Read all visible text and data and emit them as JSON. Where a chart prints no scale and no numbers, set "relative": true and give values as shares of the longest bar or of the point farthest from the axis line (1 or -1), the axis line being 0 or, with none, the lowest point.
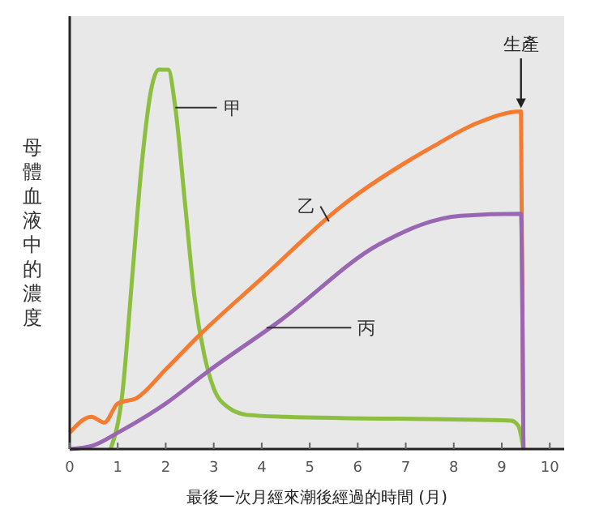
{
  "chart_data": {
    "type": "line",
    "relative": true,
    "xlabel": "最後一次月經來潮後經過的時間 (月)",
    "ylabel": "母體血液中的濃度",
    "xlim": [
      0,
      10.3
    ],
    "xticks": [
      0,
      1,
      2,
      3,
      4,
      5,
      6,
      7,
      8,
      9,
      10
    ],
    "grid": false,
    "legend": false,
    "marker": "none",
    "line_style": "solid",
    "series": [
      {
        "name": "甲",
        "color": "#8cbf3f",
        "x": [
          0.85,
          1.1,
          1.3,
          1.5,
          1.7,
          1.85,
          2.05,
          2.2,
          2.4,
          2.6,
          2.8,
          3.0,
          3.3,
          3.7,
          4.5,
          9.2,
          9.35,
          9.45
        ],
        "values": [
          0,
          0.15,
          0.45,
          0.75,
          0.95,
          1,
          1,
          0.9,
          0.65,
          0.4,
          0.25,
          0.16,
          0.11,
          0.09,
          0.085,
          0.075,
          0.06,
          0
        ]
      },
      {
        "name": "乙",
        "color": "#f47b30",
        "x": [
          0,
          0.45,
          0.72,
          1.0,
          1.4,
          2.0,
          2.7,
          4.0,
          5.66,
          7.6,
          8.5,
          9.4,
          9.45
        ],
        "values": [
          0.043,
          0.085,
          0.07,
          0.12,
          0.135,
          0.21,
          0.3,
          0.45,
          0.64,
          0.8,
          0.86,
          0.89,
          0
        ]
      },
      {
        "name": "丙",
        "color": "#9966b3",
        "x": [
          0,
          0.5,
          1.0,
          2.0,
          2.83,
          4.4,
          6.45,
          8.15,
          9.4,
          9.45
        ],
        "values": [
          0,
          0.01,
          0.043,
          0.12,
          0.2,
          0.34,
          0.54,
          0.615,
          0.62,
          0
        ]
      }
    ],
    "annotations": [
      {
        "text": "生產",
        "x": 9.4,
        "y": 0.89
      }
    ]
  }
}
